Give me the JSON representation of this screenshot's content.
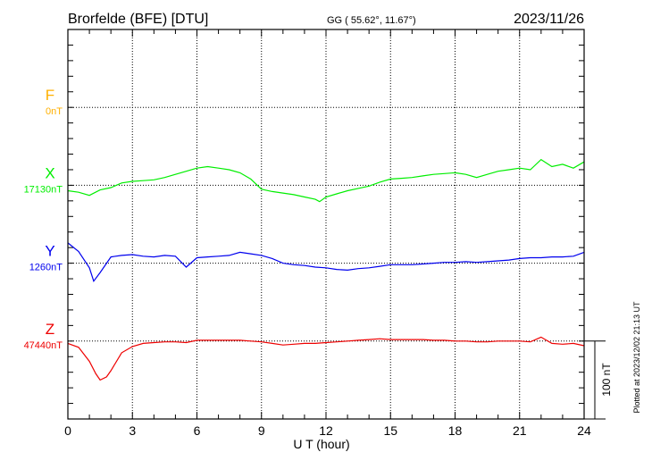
{
  "header": {
    "station": "Brorfelde (BFE)  [DTU]",
    "coords": "GG ( 55.62°,  11.67°)",
    "date": "2023/11/26"
  },
  "footer_note": "Plotted at 2023/12/02 21:13 UT",
  "chart_data": {
    "type": "line",
    "xlabel": "U T (hour)",
    "xlim": [
      0,
      24
    ],
    "xticks": [
      "0",
      "3",
      "6",
      "9",
      "12",
      "15",
      "18",
      "21",
      "24"
    ],
    "scale_bar": "100 nT",
    "tick_interval_nT": 20,
    "grid": true,
    "series": [
      {
        "name": "F",
        "baseline_label": "0nT",
        "color": "#ffb000",
        "x": [],
        "y": []
      },
      {
        "name": "X",
        "baseline_label": "17130nT",
        "color": "#00ee00",
        "x": [
          0,
          0.5,
          1,
          1.5,
          2,
          2.5,
          3,
          3.5,
          4,
          4.5,
          5,
          5.5,
          6,
          6.5,
          7,
          7.5,
          8,
          8.5,
          9,
          9.5,
          10,
          10.5,
          11,
          11.5,
          11.7,
          12,
          12.5,
          13,
          13.5,
          14,
          14.5,
          15,
          15.5,
          16,
          16.5,
          17,
          17.5,
          18,
          18.5,
          19,
          19.5,
          20,
          20.5,
          21,
          21.5,
          22,
          22.5,
          23,
          23.5,
          24
        ],
        "y": [
          -7,
          -9,
          -13,
          -6,
          -3,
          3,
          5,
          6,
          7,
          10,
          14,
          18,
          22,
          24,
          22,
          20,
          16,
          8,
          -5,
          -8,
          -10,
          -12,
          -15,
          -18,
          -21,
          -15,
          -11,
          -7,
          -4,
          -1,
          4,
          8,
          9,
          10,
          12,
          14,
          15,
          16,
          14,
          10,
          14,
          18,
          20,
          22,
          20,
          33,
          24,
          27,
          22,
          30
        ]
      },
      {
        "name": "Y",
        "baseline_label": "1260nT",
        "color": "#0000ee",
        "x": [
          0,
          0.5,
          1,
          1.2,
          1.5,
          2,
          2.5,
          3,
          3.5,
          4,
          4.5,
          5,
          5.5,
          6,
          6.5,
          7,
          7.5,
          8,
          8.5,
          9,
          9.5,
          10,
          10.5,
          11,
          11.5,
          12,
          12.5,
          13,
          13.5,
          14,
          14.5,
          15,
          15.5,
          16,
          16.5,
          17,
          17.5,
          18,
          18.5,
          19,
          19.5,
          20,
          20.5,
          21,
          21.5,
          22,
          22.5,
          23,
          23.5,
          24
        ],
        "y": [
          26,
          15,
          -6,
          -23,
          -12,
          8,
          10,
          11,
          9,
          8,
          10,
          9,
          -5,
          7,
          8,
          9,
          10,
          14,
          12,
          10,
          6,
          0,
          -2,
          -3,
          -5,
          -6,
          -8,
          -9,
          -7,
          -6,
          -4,
          -2,
          -2,
          -2,
          -1,
          0,
          1,
          1,
          2,
          1,
          2,
          3,
          4,
          6,
          7,
          7,
          8,
          8,
          9,
          14
        ]
      },
      {
        "name": "Z",
        "baseline_label": "47440nT",
        "color": "#ee0000",
        "x": [
          0,
          0.5,
          1,
          1.3,
          1.5,
          1.8,
          2,
          2.5,
          3,
          3.5,
          4,
          4.5,
          5,
          5.5,
          6,
          6.5,
          7,
          7.5,
          8,
          8.5,
          9,
          9.5,
          10,
          10.5,
          11,
          11.5,
          12,
          12.5,
          13,
          13.5,
          14,
          14.5,
          15,
          15.5,
          16,
          16.5,
          17,
          17.5,
          18,
          18.5,
          19,
          19.5,
          20,
          20.5,
          21,
          21.5,
          22,
          22.5,
          23,
          23.5,
          24
        ],
        "y": [
          -3,
          -8,
          -26,
          -42,
          -50,
          -46,
          -38,
          -15,
          -7,
          -3,
          -2,
          -1,
          -1,
          -2,
          1,
          1,
          1,
          1,
          1,
          0,
          -1,
          -3,
          -5,
          -4,
          -3,
          -3,
          -2,
          -1,
          0,
          1,
          2,
          3,
          2,
          2,
          2,
          2,
          1,
          1,
          0,
          0,
          -1,
          -1,
          0,
          0,
          0,
          -1,
          5,
          -3,
          -4,
          -3,
          -6
        ]
      }
    ]
  }
}
